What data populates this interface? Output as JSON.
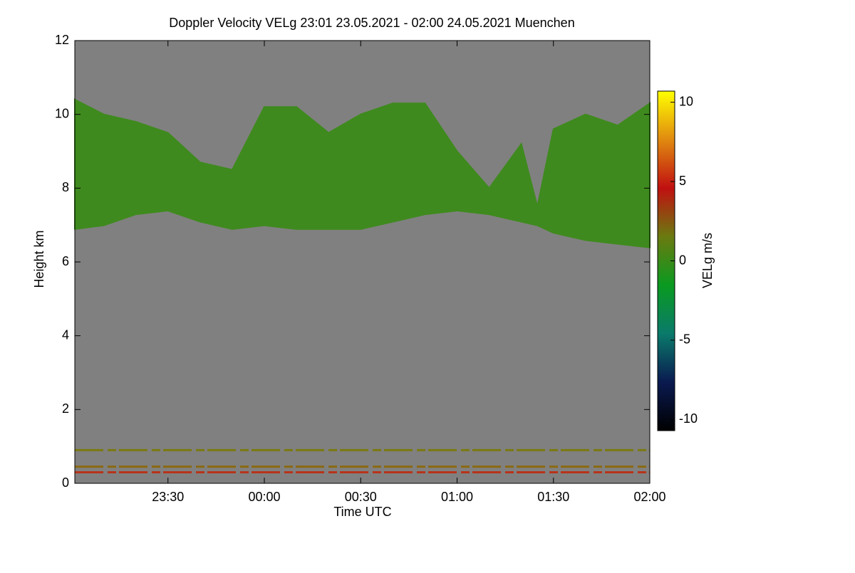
{
  "chart_data": {
    "type": "heatmap",
    "title": "Doppler Velocity VELg   23:01 23.05.2021 - 02:00 24.05.2021 Muenchen",
    "xlabel": "Time UTC",
    "ylabel": "Height km",
    "xlim": [
      "23:01",
      "02:00"
    ],
    "xticks": [
      "23:30",
      "00:00",
      "00:30",
      "01:00",
      "01:30",
      "02:00"
    ],
    "ylim": [
      0,
      12
    ],
    "yticks": [
      0,
      2,
      4,
      6,
      8,
      10,
      12
    ],
    "background": "#808080",
    "cloud": {
      "x": [
        "23:01",
        "23:10",
        "23:20",
        "23:30",
        "23:40",
        "23:50",
        "00:00",
        "00:10",
        "00:20",
        "00:30",
        "00:40",
        "00:50",
        "01:00",
        "01:10",
        "01:20",
        "01:25",
        "01:30",
        "01:40",
        "01:50",
        "02:00"
      ],
      "top": [
        10.4,
        10.0,
        9.8,
        9.5,
        8.7,
        8.5,
        10.2,
        10.2,
        9.5,
        10.0,
        10.3,
        10.3,
        9.0,
        8.0,
        9.2,
        7.5,
        9.6,
        10.0,
        9.7,
        10.3
      ],
      "base": [
        6.9,
        7.0,
        7.3,
        7.4,
        7.1,
        6.9,
        7.0,
        6.9,
        6.9,
        6.9,
        7.1,
        7.3,
        7.4,
        7.3,
        7.1,
        7.0,
        6.8,
        6.6,
        6.5,
        6.4
      ],
      "color": "#3f8a1e"
    },
    "bands": {
      "heights": [
        0.3,
        0.45,
        0.9
      ],
      "colors": [
        "#b8331a",
        "#8a6a10",
        "#7a7a10"
      ]
    },
    "colorbar": {
      "label": "VELg m/s",
      "clim": [
        -10.7,
        10.7
      ],
      "ticks": [
        -10,
        -5,
        0,
        5,
        10
      ],
      "colormap": [
        "#000000",
        "#0a1a50",
        "#0a7a6a",
        "#0a9a20",
        "#6a7a10",
        "#c01010",
        "#e08a10",
        "#ffff00"
      ]
    }
  }
}
